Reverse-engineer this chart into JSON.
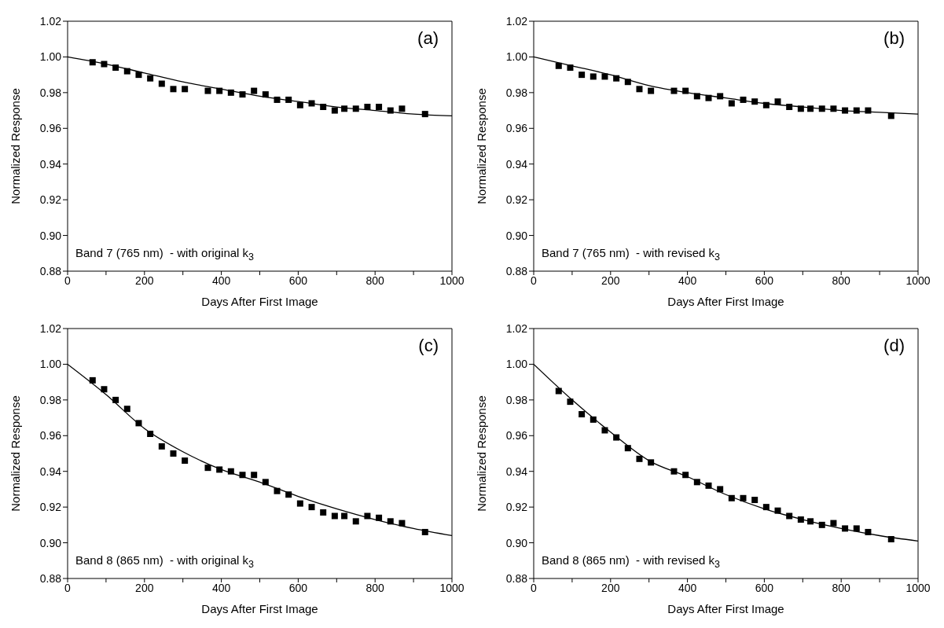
{
  "chart_data": [
    {
      "type": "scatter",
      "annotations": [
        "(a)",
        "Band 7 (765 nm)  - with original k$_{3}$"
      ],
      "xlabel": "Days After First Image",
      "ylabel": "Normalized Response",
      "xlim": [
        0,
        1000
      ],
      "ylim": [
        0.88,
        1.02
      ],
      "marker": "square",
      "grid": false,
      "xticks": [
        0,
        {
          "value": 100,
          "label": null
        },
        200,
        {
          "value": 300,
          "label": null
        },
        400,
        {
          "value": 500,
          "label": null
        },
        600,
        {
          "value": 700,
          "label": null
        },
        800,
        {
          "value": 900,
          "label": null
        },
        1000
      ],
      "yticks": [
        {
          "value": 0.88,
          "label": "0.88"
        },
        {
          "value": 0.9,
          "label": "0.90"
        },
        {
          "value": 0.92,
          "label": "0.92"
        },
        {
          "value": 0.94,
          "label": "0.94"
        },
        {
          "value": 0.96,
          "label": "0.96"
        },
        {
          "value": 0.98,
          "label": "0.98"
        },
        {
          "value": 1,
          "label": "1.00"
        },
        {
          "value": 1.02,
          "label": "1.02"
        }
      ],
      "series": [
        {
          "type": "scatter",
          "color": "#000000",
          "x": [
            65,
            95,
            125,
            155,
            185,
            215,
            245,
            275,
            305,
            365,
            395,
            425,
            455,
            485,
            515,
            545,
            575,
            605,
            635,
            665,
            695,
            720,
            750,
            780,
            810,
            840,
            870,
            930
          ],
          "values": [
            0.997,
            0.996,
            0.994,
            0.992,
            0.99,
            0.988,
            0.985,
            0.982,
            0.982,
            0.981,
            0.981,
            0.98,
            0.979,
            0.981,
            0.979,
            0.976,
            0.976,
            0.973,
            0.974,
            0.972,
            0.97,
            0.971,
            0.971,
            0.972,
            0.972,
            0.97,
            0.971,
            0.968
          ]
        },
        {
          "type": "line",
          "color": "#000000",
          "marker": "none",
          "x": [
            0,
            100,
            200,
            300,
            400,
            500,
            600,
            700,
            800,
            900,
            1000
          ],
          "values": [
            1.0,
            0.996,
            0.991,
            0.986,
            0.982,
            0.978,
            0.975,
            0.972,
            0.97,
            0.968,
            0.967
          ]
        }
      ]
    },
    {
      "type": "scatter",
      "annotations": [
        "(b)",
        "Band 7 (765 nm)  - with revised k$_{3}$"
      ],
      "xlabel": "Days After First Image",
      "ylabel": "Normalized Response",
      "xlim": [
        0,
        1000
      ],
      "ylim": [
        0.88,
        1.02
      ],
      "marker": "square",
      "grid": false,
      "xticks": [
        0,
        {
          "value": 100,
          "label": null
        },
        200,
        {
          "value": 300,
          "label": null
        },
        400,
        {
          "value": 500,
          "label": null
        },
        600,
        {
          "value": 700,
          "label": null
        },
        800,
        {
          "value": 900,
          "label": null
        },
        1000
      ],
      "yticks": [
        {
          "value": 0.88,
          "label": "0.88"
        },
        {
          "value": 0.9,
          "label": "0.90"
        },
        {
          "value": 0.92,
          "label": "0.92"
        },
        {
          "value": 0.94,
          "label": "0.94"
        },
        {
          "value": 0.96,
          "label": "0.96"
        },
        {
          "value": 0.98,
          "label": "0.98"
        },
        {
          "value": 1,
          "label": "1.00"
        },
        {
          "value": 1.02,
          "label": "1.02"
        }
      ],
      "series": [
        {
          "type": "scatter",
          "color": "#000000",
          "x": [
            65,
            95,
            125,
            155,
            185,
            215,
            245,
            275,
            305,
            365,
            395,
            425,
            455,
            485,
            515,
            545,
            575,
            605,
            635,
            665,
            695,
            720,
            750,
            780,
            810,
            840,
            870,
            930
          ],
          "values": [
            0.995,
            0.994,
            0.99,
            0.989,
            0.989,
            0.988,
            0.986,
            0.982,
            0.981,
            0.981,
            0.981,
            0.978,
            0.977,
            0.978,
            0.974,
            0.976,
            0.975,
            0.973,
            0.975,
            0.972,
            0.971,
            0.971,
            0.971,
            0.971,
            0.97,
            0.97,
            0.97,
            0.967
          ]
        },
        {
          "type": "line",
          "color": "#000000",
          "marker": "none",
          "x": [
            0,
            100,
            200,
            300,
            400,
            500,
            600,
            700,
            800,
            900,
            1000
          ],
          "values": [
            1.0,
            0.995,
            0.99,
            0.984,
            0.98,
            0.977,
            0.974,
            0.972,
            0.97,
            0.969,
            0.968
          ]
        }
      ]
    },
    {
      "type": "scatter",
      "annotations": [
        "(c)",
        "Band 8 (865 nm)  - with original k$_{3}$"
      ],
      "xlabel": "Days After First Image",
      "ylabel": "Normalized Response",
      "xlim": [
        0,
        1000
      ],
      "ylim": [
        0.88,
        1.02
      ],
      "marker": "square",
      "grid": false,
      "xticks": [
        0,
        {
          "value": 100,
          "label": null
        },
        200,
        {
          "value": 300,
          "label": null
        },
        400,
        {
          "value": 500,
          "label": null
        },
        600,
        {
          "value": 700,
          "label": null
        },
        800,
        {
          "value": 900,
          "label": null
        },
        1000
      ],
      "yticks": [
        {
          "value": 0.88,
          "label": "0.88"
        },
        {
          "value": 0.9,
          "label": "0.90"
        },
        {
          "value": 0.92,
          "label": "0.92"
        },
        {
          "value": 0.94,
          "label": "0.94"
        },
        {
          "value": 0.96,
          "label": "0.96"
        },
        {
          "value": 0.98,
          "label": "0.98"
        },
        {
          "value": 1,
          "label": "1.00"
        },
        {
          "value": 1.02,
          "label": "1.02"
        }
      ],
      "series": [
        {
          "type": "scatter",
          "color": "#000000",
          "x": [
            65,
            95,
            125,
            155,
            185,
            215,
            245,
            275,
            305,
            365,
            395,
            425,
            455,
            485,
            515,
            545,
            575,
            605,
            635,
            665,
            695,
            720,
            750,
            780,
            810,
            840,
            870,
            930
          ],
          "values": [
            0.991,
            0.986,
            0.98,
            0.975,
            0.967,
            0.961,
            0.954,
            0.95,
            0.946,
            0.942,
            0.941,
            0.94,
            0.938,
            0.938,
            0.934,
            0.929,
            0.927,
            0.922,
            0.92,
            0.917,
            0.915,
            0.915,
            0.912,
            0.915,
            0.914,
            0.912,
            0.911,
            0.906
          ]
        },
        {
          "type": "line",
          "color": "#000000",
          "marker": "none",
          "x": [
            0,
            100,
            200,
            300,
            400,
            500,
            600,
            700,
            800,
            900,
            1000
          ],
          "values": [
            1.0,
            0.983,
            0.964,
            0.951,
            0.941,
            0.934,
            0.926,
            0.919,
            0.913,
            0.908,
            0.904
          ]
        }
      ]
    },
    {
      "type": "scatter",
      "annotations": [
        "(d)",
        "Band 8 (865 nm)  - with revised k$_{3}$"
      ],
      "xlabel": "Days After First Image",
      "ylabel": "Normalized Response",
      "xlim": [
        0,
        1000
      ],
      "ylim": [
        0.88,
        1.02
      ],
      "marker": "square",
      "grid": false,
      "xticks": [
        0,
        {
          "value": 100,
          "label": null
        },
        200,
        {
          "value": 300,
          "label": null
        },
        400,
        {
          "value": 500,
          "label": null
        },
        600,
        {
          "value": 700,
          "label": null
        },
        800,
        {
          "value": 900,
          "label": null
        },
        1000
      ],
      "yticks": [
        {
          "value": 0.88,
          "label": "0.88"
        },
        {
          "value": 0.9,
          "label": "0.90"
        },
        {
          "value": 0.92,
          "label": "0.92"
        },
        {
          "value": 0.94,
          "label": "0.94"
        },
        {
          "value": 0.96,
          "label": "0.96"
        },
        {
          "value": 0.98,
          "label": "0.98"
        },
        {
          "value": 1,
          "label": "1.00"
        },
        {
          "value": 1.02,
          "label": "1.02"
        }
      ],
      "series": [
        {
          "type": "scatter",
          "color": "#000000",
          "x": [
            65,
            95,
            125,
            155,
            185,
            215,
            245,
            275,
            305,
            365,
            395,
            425,
            455,
            485,
            515,
            545,
            575,
            605,
            635,
            665,
            695,
            720,
            750,
            780,
            810,
            840,
            870,
            930
          ],
          "values": [
            0.985,
            0.979,
            0.972,
            0.969,
            0.963,
            0.959,
            0.953,
            0.947,
            0.945,
            0.94,
            0.938,
            0.934,
            0.932,
            0.93,
            0.925,
            0.925,
            0.924,
            0.92,
            0.918,
            0.915,
            0.913,
            0.912,
            0.91,
            0.911,
            0.908,
            0.908,
            0.906,
            0.902
          ]
        },
        {
          "type": "line",
          "color": "#000000",
          "marker": "none",
          "x": [
            0,
            100,
            200,
            300,
            400,
            500,
            600,
            700,
            800,
            900,
            1000
          ],
          "values": [
            1.0,
            0.98,
            0.962,
            0.946,
            0.937,
            0.927,
            0.919,
            0.913,
            0.908,
            0.904,
            0.901
          ]
        }
      ]
    }
  ]
}
